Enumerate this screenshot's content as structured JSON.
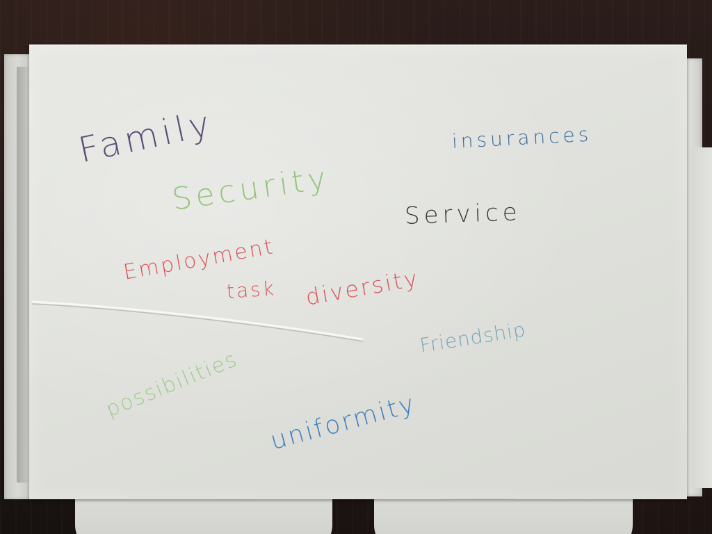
{
  "card": {
    "words": {
      "family": "Family",
      "security": "Security",
      "insurances": "insurances",
      "service": "Service",
      "employment": "Employment",
      "task": "task",
      "diversity": "diversity",
      "friendship": "Friendship",
      "possibilities": "possibilities",
      "uniformity": "uniformity"
    },
    "ink_colors": {
      "family": "#5c4e78",
      "security": "#93c47d",
      "insurances": "#3e6f9e",
      "service": "#3d3b38",
      "employment": "#d9545a",
      "task": "#d9545a",
      "diversity": "#d9545a",
      "friendship": "#7aa6b6",
      "possibilities": "#9ccc8a",
      "uniformity": "#3e7fbf"
    }
  }
}
